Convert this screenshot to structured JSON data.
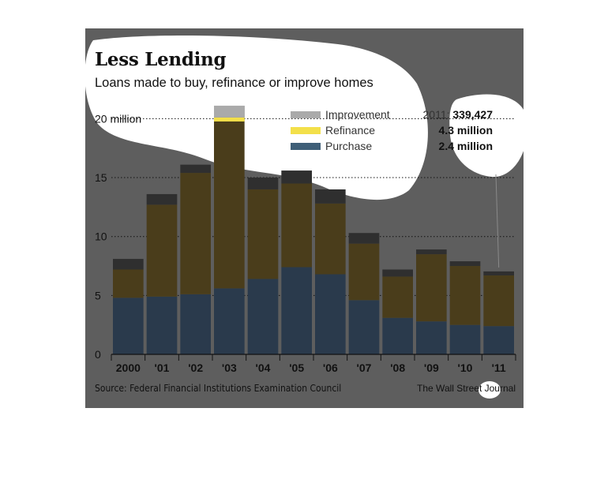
{
  "chart_data": {
    "type": "bar",
    "stacked": true,
    "title": "Less Lending",
    "subtitle": "Loans made to buy, refinance or improve homes",
    "categories": [
      "2000",
      "'01",
      "'02",
      "'03",
      "'04",
      "'05",
      "'06",
      "'07",
      "'08",
      "'09",
      "'10",
      "'11"
    ],
    "series": [
      {
        "name": "Purchase",
        "color": "#2a3a4c",
        "values": [
          4.8,
          4.9,
          5.1,
          5.6,
          6.4,
          7.4,
          6.8,
          4.6,
          3.1,
          2.8,
          2.5,
          2.4
        ]
      },
      {
        "name": "Refinance",
        "color": "#4a3d1b",
        "values": [
          2.4,
          7.8,
          10.3,
          14.5,
          7.6,
          7.1,
          6.0,
          4.8,
          3.5,
          5.7,
          5.0,
          4.3
        ]
      },
      {
        "name": "Improvement",
        "color": "#2f2f2f",
        "values": [
          0.9,
          0.9,
          0.7,
          1.0,
          1.0,
          1.1,
          1.2,
          0.9,
          0.6,
          0.4,
          0.4,
          0.34
        ]
      }
    ],
    "y_ticks": [
      "0",
      "5",
      "10",
      "15",
      "20 million"
    ],
    "y_tick_values": [
      0,
      5,
      10,
      15,
      20
    ],
    "ylim": [
      0,
      21.5
    ],
    "grid": "dotted horizontal",
    "legend": {
      "placement": "top-right",
      "entries": [
        {
          "name": "Improvement",
          "swatch": "#aaaaaa",
          "prefix": "2011:",
          "value": "339,427"
        },
        {
          "name": "Refinance",
          "swatch": "#f3e04a",
          "prefix": "",
          "value": "4.3 million"
        },
        {
          "name": "Purchase",
          "swatch": "#3f5f78",
          "prefix": "",
          "value": "2.4 million"
        }
      ]
    },
    "source": "Source: Federal Financial Institutions Examination Council",
    "credit": "The Wall Street Journal"
  }
}
